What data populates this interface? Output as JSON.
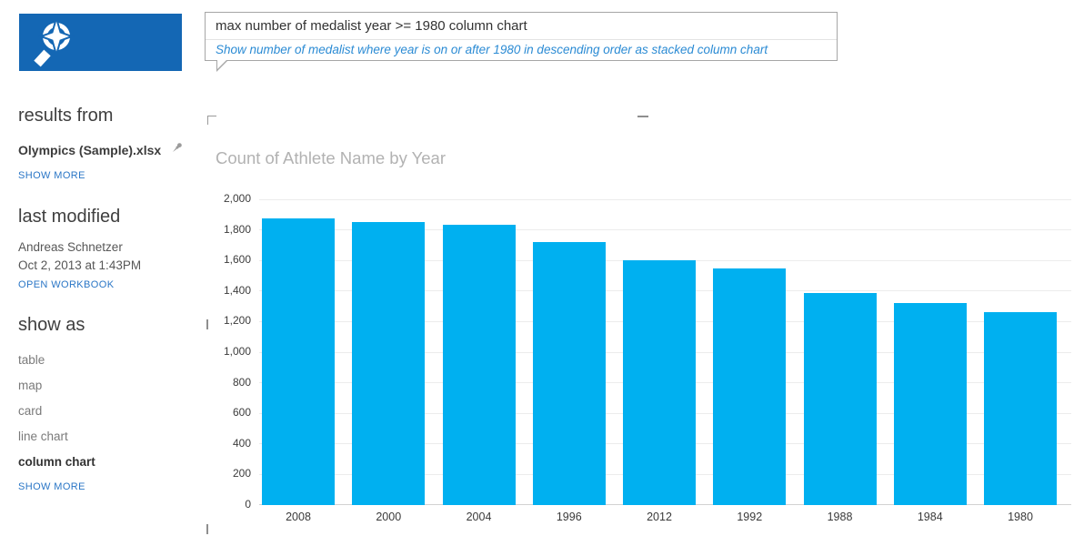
{
  "app": {
    "logo_icon": "qna-search-compass-icon"
  },
  "query_box": {
    "query": "max number of medalist year >= 1980 column chart",
    "restatement": "Show number of medalist where year is on or after 1980 in descending order as stacked column chart"
  },
  "sidebar": {
    "results_from_heading": "results from",
    "source_file": "Olympics (Sample).xlsx",
    "pin_icon": "pushpin-icon",
    "show_more_results": "SHOW MORE",
    "last_modified_heading": "last modified",
    "modified_by": "Andreas Schnetzer",
    "modified_date": "Oct 2, 2013 at 1:43PM",
    "open_workbook": "OPEN WORKBOOK",
    "show_as_heading": "show as",
    "show_as_options": [
      {
        "label": "table",
        "selected": false
      },
      {
        "label": "map",
        "selected": false
      },
      {
        "label": "card",
        "selected": false
      },
      {
        "label": "line chart",
        "selected": false
      },
      {
        "label": "column chart",
        "selected": true
      }
    ],
    "show_more_visuals": "SHOW MORE"
  },
  "colors": {
    "logo_blue": "#1467b4",
    "link_blue": "#2a76c6",
    "restatement_blue": "#2b8bd4",
    "bar_fill": "#00b0f0"
  },
  "chart_data": {
    "type": "bar",
    "title": "Count of Athlete Name by Year",
    "categories": [
      "2008",
      "2000",
      "2004",
      "1996",
      "2012",
      "1992",
      "1988",
      "1984",
      "1980"
    ],
    "values": [
      1875,
      1850,
      1835,
      1720,
      1600,
      1545,
      1385,
      1320,
      1260
    ],
    "series_name": "Count of Athlete Name",
    "xlabel": "",
    "ylabel": "",
    "ylim": [
      0,
      2000
    ],
    "ytick_step": 200,
    "grid": true,
    "legend": false,
    "sort": "descending",
    "bar_color": "#00b0f0"
  }
}
